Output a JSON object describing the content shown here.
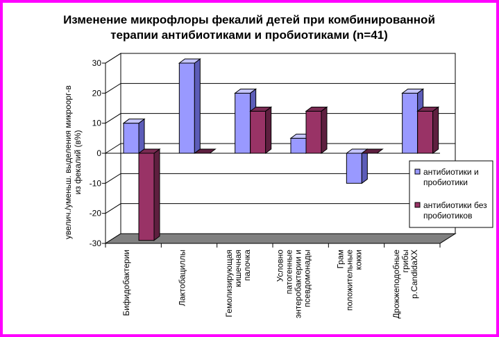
{
  "chart_data": {
    "type": "bar",
    "title_lines": [
      "Изменение микрофлоры фекалий детей при комбинированной",
      "терапии антибиотиками и пробиотиками (n=41)"
    ],
    "ylabel_lines": [
      "увелич./уменьш. выделения микроорг-в",
      "из фекалий (в%)"
    ],
    "ylim": [
      -30,
      30
    ],
    "yticks": [
      30,
      20,
      10,
      0,
      -10,
      -20,
      -30
    ],
    "grid": true,
    "legend_position": "right",
    "categories": [
      [
        "Бифидобактерии"
      ],
      [
        "Лактобациллы"
      ],
      [
        "Гемолизирующая",
        "кишечная",
        "палочка"
      ],
      [
        "Условно",
        "патогенные",
        "энтеробактерии и",
        "псевдомонады"
      ],
      [
        "Грам",
        "положительные",
        "кокки"
      ],
      [
        "Дрожжеподобные",
        "грибы",
        "p.CandidaXX"
      ]
    ],
    "series": [
      {
        "name_lines": [
          "антибиотики и",
          "пробиотики"
        ],
        "color": "#9999ff",
        "side": "#5c5cb8",
        "top": "#c4c4ff",
        "values": [
          10,
          30,
          20,
          5,
          -10,
          20
        ]
      },
      {
        "name_lines": [
          "антибиотики без",
          "пробиотиков"
        ],
        "color": "#993366",
        "side": "#5e1f3f",
        "top": "#7a2a52",
        "values": [
          -29,
          0,
          14,
          14,
          0,
          14
        ]
      }
    ]
  }
}
